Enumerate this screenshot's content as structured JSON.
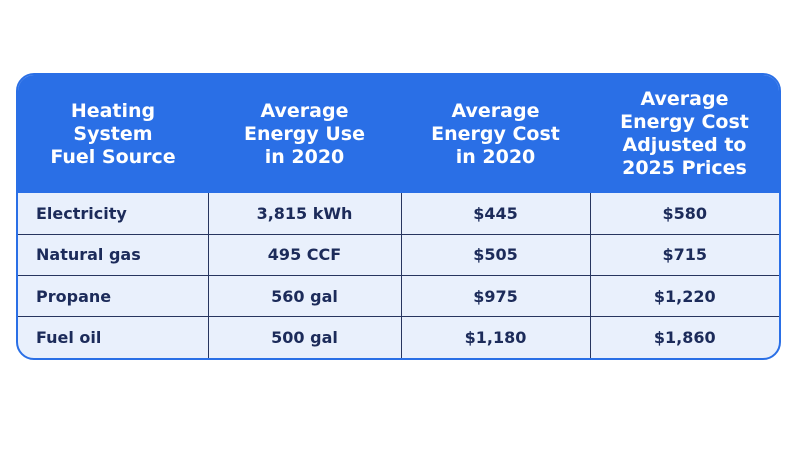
{
  "table": {
    "headers": [
      [
        "Heating",
        "System",
        "Fuel Source"
      ],
      [
        "Average",
        "Energy Use",
        "in 2020"
      ],
      [
        "Average",
        "Energy Cost",
        "in 2020"
      ],
      [
        "Average",
        "Energy Cost",
        "Adjusted to",
        "2025 Prices"
      ]
    ],
    "rows": [
      [
        "Electricity",
        "3,815 kWh",
        "$445",
        "$580"
      ],
      [
        "Natural gas",
        "495 CCF",
        "$505",
        "$715"
      ],
      [
        "Propane",
        "560 gal",
        "$975",
        "$1,220"
      ],
      [
        "Fuel oil",
        "500 gal",
        "$1,180",
        "$1,860"
      ]
    ]
  },
  "colors": {
    "header_bg": "#2a6fe6",
    "row_bg": "#e9f0fc",
    "text": "#1c2b5a",
    "grid": "#27355f"
  }
}
